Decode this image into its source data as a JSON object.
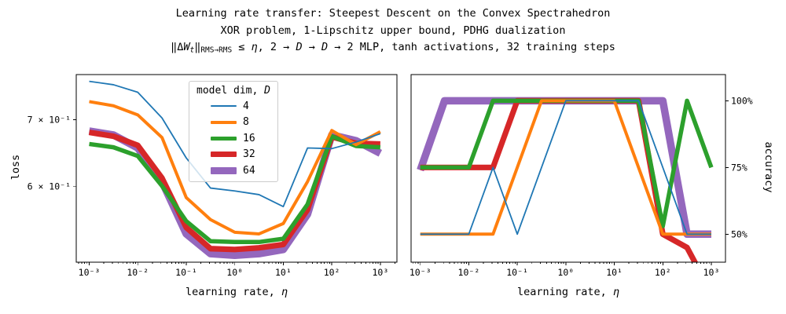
{
  "title": {
    "line1": "Learning rate transfer: Steepest Descent on the Convex Spectrahedron",
    "line2": "XOR problem, 1-Lipschitz upper bound, PDHG dualization",
    "line3_parts": [
      {
        "t": "‖Δ",
        "s": "n"
      },
      {
        "t": "W",
        "s": "i"
      },
      {
        "t": "t",
        "s": "sub-i"
      },
      {
        "t": "‖",
        "s": "n"
      },
      {
        "t": "RMS→RMS",
        "s": "sub"
      },
      {
        "t": " ≤ ",
        "s": "n"
      },
      {
        "t": "η",
        "s": "i"
      },
      {
        "t": ",  2 → ",
        "s": "n"
      },
      {
        "t": "D",
        "s": "i"
      },
      {
        "t": " → ",
        "s": "n"
      },
      {
        "t": "D",
        "s": "i"
      },
      {
        "t": " → 2 MLP, tanh activations, 32 training steps",
        "s": "n"
      }
    ]
  },
  "legend": {
    "title_prefix": "model dim, ",
    "title_D": "D",
    "entries": [
      {
        "label": "4",
        "color": "#1f77b4",
        "linewidth": 2
      },
      {
        "label": "8",
        "color": "#ff7f0e",
        "linewidth": 4
      },
      {
        "label": "16",
        "color": "#2ca02c",
        "linewidth": 5.5
      },
      {
        "label": "32",
        "color": "#d62728",
        "linewidth": 7
      },
      {
        "label": "64",
        "color": "#9467bd",
        "linewidth": 9.5
      }
    ]
  },
  "chart_data": [
    {
      "type": "line",
      "id": "loss-chart",
      "title": "",
      "xlabel": "learning rate, η",
      "xlabel_prefix": "learning rate, ",
      "xlabel_eta": "η",
      "ylabel": "loss",
      "xscale": "log",
      "yscale": "log",
      "grid": false,
      "legend_position": "upper center inside left plot",
      "xlim": [
        0.00054,
        2200
      ],
      "ylim": [
        0.504,
        0.777
      ],
      "x": [
        0.001,
        0.00316,
        0.01,
        0.0316,
        0.1,
        0.316,
        1,
        3.16,
        10,
        31.6,
        100,
        316,
        1000
      ],
      "xtick_values": [
        0.001,
        0.01,
        0.1,
        1,
        10,
        100,
        1000
      ],
      "xtick_labels": [
        "10⁻³",
        "10⁻²",
        "10⁻¹",
        "10⁰",
        "10¹",
        "10²",
        "10³"
      ],
      "ytick_values": [
        0.7,
        0.6
      ],
      "ytick_labels": [
        "7 × 10⁻¹",
        "6 × 10⁻¹"
      ],
      "ytick_side": "left",
      "series": [
        {
          "name": "4",
          "color": "#1f77b4",
          "linewidth": 1.8,
          "values": [
            0.765,
            0.759,
            0.746,
            0.703,
            0.641,
            0.598,
            0.594,
            0.589,
            0.573,
            0.656,
            0.655,
            0.665,
            0.678
          ]
        },
        {
          "name": "8",
          "color": "#ff7f0e",
          "linewidth": 4,
          "values": [
            0.73,
            0.723,
            0.708,
            0.672,
            0.585,
            0.556,
            0.54,
            0.538,
            0.551,
            0.607,
            0.683,
            0.661,
            0.681
          ]
        },
        {
          "name": "16",
          "color": "#2ca02c",
          "linewidth": 5.5,
          "values": [
            0.662,
            0.657,
            0.644,
            0.601,
            0.554,
            0.529,
            0.528,
            0.528,
            0.532,
            0.576,
            0.674,
            0.659,
            0.657
          ]
        },
        {
          "name": "32",
          "color": "#d62728",
          "linewidth": 7.2,
          "values": [
            0.68,
            0.674,
            0.66,
            0.612,
            0.546,
            0.52,
            0.519,
            0.521,
            0.525,
            0.569,
            0.673,
            0.663,
            0.662
          ]
        },
        {
          "name": "64",
          "color": "#9467bd",
          "linewidth": 9.5,
          "values": [
            0.682,
            0.676,
            0.656,
            0.607,
            0.538,
            0.514,
            0.512,
            0.514,
            0.519,
            0.563,
            0.676,
            0.667,
            0.648
          ]
        }
      ]
    },
    {
      "type": "line",
      "id": "accuracy-chart",
      "title": "",
      "xlabel": "learning rate, η",
      "xlabel_prefix": "learning rate, ",
      "xlabel_eta": "η",
      "ylabel": "accuracy",
      "xscale": "log",
      "yscale": "linear",
      "grid": false,
      "legend_position": "none",
      "xlim": [
        0.000646,
        1959
      ],
      "ylim": [
        39.5,
        109.8
      ],
      "x": [
        0.001,
        0.00316,
        0.01,
        0.0316,
        0.1,
        0.316,
        1,
        3.16,
        10,
        31.6,
        100,
        316,
        1000
      ],
      "xtick_values": [
        0.001,
        0.01,
        0.1,
        1,
        10,
        100,
        1000
      ],
      "xtick_labels": [
        "10⁻³",
        "10⁻²",
        "10⁻¹",
        "10⁰",
        "10¹",
        "10²",
        "10³"
      ],
      "ytick_values": [
        100,
        75,
        50
      ],
      "ytick_labels": [
        "100%",
        "75%",
        "50%"
      ],
      "ytick_side": "right",
      "series": [
        {
          "name": "4",
          "color": "#1f77b4",
          "linewidth": 1.8,
          "values": [
            50,
            50,
            50,
            75,
            50,
            75,
            100,
            100,
            100,
            100,
            75,
            50,
            50
          ]
        },
        {
          "name": "8",
          "color": "#ff7f0e",
          "linewidth": 4,
          "values": [
            50,
            50,
            50,
            50,
            75,
            100,
            100,
            100,
            100,
            75,
            50,
            50,
            50
          ]
        },
        {
          "name": "16",
          "color": "#2ca02c",
          "linewidth": 5.5,
          "values": [
            75,
            75,
            75,
            100,
            100,
            100,
            100,
            100,
            100,
            100,
            53,
            100,
            75
          ]
        },
        {
          "name": "32",
          "color": "#d62728",
          "linewidth": 7.2,
          "values": [
            75,
            75,
            75,
            75,
            100,
            100,
            100,
            100,
            100,
            100,
            50,
            45,
            28
          ]
        },
        {
          "name": "64",
          "color": "#9467bd",
          "linewidth": 9.5,
          "values": [
            74,
            100,
            100,
            100,
            100,
            100,
            100,
            100,
            100,
            100,
            100,
            50,
            50
          ]
        }
      ]
    }
  ]
}
